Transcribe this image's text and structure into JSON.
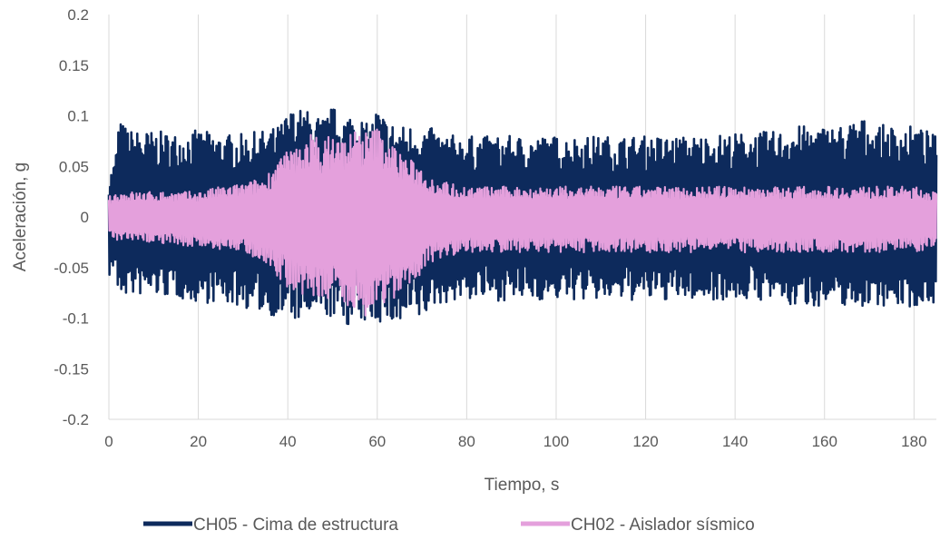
{
  "chart_data": {
    "type": "line",
    "title": "",
    "xlabel": "Tiempo, s",
    "ylabel": "Aceleración, g",
    "xlim": [
      0,
      185
    ],
    "ylim": [
      -0.2,
      0.2
    ],
    "x_ticks": [
      "0",
      "20",
      "40",
      "60",
      "80",
      "100",
      "120",
      "140",
      "160",
      "180"
    ],
    "y_ticks": [
      "0.2",
      "0.15",
      "0.1",
      "0.05",
      "0",
      "-0.05",
      "-0.1",
      "-0.15",
      "-0.2"
    ],
    "grid": "vertical",
    "legend_position": "bottom",
    "series": [
      {
        "name": "CH05 - Cima de estructura",
        "color": "#0d2a5c",
        "envelope": {
          "t": [
            0,
            1.5,
            2,
            5,
            10,
            15,
            20,
            25,
            30,
            35,
            38,
            40,
            42,
            45,
            48,
            50,
            52,
            55,
            58,
            60,
            62,
            65,
            68,
            70,
            72,
            75,
            80,
            90,
            100,
            110,
            120,
            130,
            140,
            150,
            152,
            155,
            160,
            165,
            168,
            170,
            175,
            180,
            183,
            185
          ],
          "max": [
            0.04,
            0.06,
            0.097,
            0.086,
            0.085,
            0.083,
            0.086,
            0.082,
            0.082,
            0.086,
            0.09,
            0.105,
            0.108,
            0.105,
            0.098,
            0.11,
            0.1,
            0.108,
            0.09,
            0.11,
            0.098,
            0.09,
            0.092,
            0.09,
            0.088,
            0.082,
            0.08,
            0.08,
            0.08,
            0.08,
            0.08,
            0.08,
            0.083,
            0.085,
            0.092,
            0.09,
            0.09,
            0.092,
            0.1,
            0.092,
            0.09,
            0.09,
            0.085,
            0.08
          ],
          "min": [
            -0.06,
            -0.05,
            -0.078,
            -0.078,
            -0.078,
            -0.08,
            -0.085,
            -0.085,
            -0.09,
            -0.095,
            -0.1,
            -0.1,
            -0.104,
            -0.1,
            -0.1,
            -0.1,
            -0.105,
            -0.11,
            -0.104,
            -0.105,
            -0.104,
            -0.112,
            -0.1,
            -0.105,
            -0.09,
            -0.085,
            -0.082,
            -0.083,
            -0.082,
            -0.083,
            -0.083,
            -0.082,
            -0.082,
            -0.083,
            -0.09,
            -0.088,
            -0.088,
            -0.088,
            -0.09,
            -0.087,
            -0.088,
            -0.09,
            -0.085,
            -0.085
          ]
        }
      },
      {
        "name": "CH02 - Aislador sísmico",
        "color": "#e4a0dc",
        "envelope": {
          "t": [
            0,
            2,
            10,
            20,
            25,
            30,
            35,
            38,
            40,
            42,
            45,
            48,
            50,
            52,
            55,
            58,
            60,
            62,
            65,
            68,
            70,
            72,
            75,
            80,
            90,
            100,
            110,
            120,
            130,
            140,
            150,
            155,
            160,
            165,
            170,
            175,
            180,
            185
          ],
          "max": [
            0.02,
            0.025,
            0.025,
            0.025,
            0.03,
            0.033,
            0.04,
            0.06,
            0.065,
            0.07,
            0.085,
            0.075,
            0.085,
            0.078,
            0.088,
            0.085,
            0.09,
            0.08,
            0.065,
            0.055,
            0.05,
            0.04,
            0.035,
            0.03,
            0.03,
            0.03,
            0.03,
            0.03,
            0.03,
            0.03,
            0.03,
            0.03,
            0.03,
            0.03,
            0.03,
            0.03,
            0.03,
            0.025
          ],
          "min": [
            -0.02,
            -0.025,
            -0.025,
            -0.03,
            -0.033,
            -0.035,
            -0.045,
            -0.06,
            -0.07,
            -0.075,
            -0.08,
            -0.085,
            -0.085,
            -0.09,
            -0.09,
            -0.1,
            -0.095,
            -0.085,
            -0.08,
            -0.065,
            -0.055,
            -0.045,
            -0.04,
            -0.035,
            -0.035,
            -0.035,
            -0.035,
            -0.035,
            -0.035,
            -0.035,
            -0.035,
            -0.035,
            -0.035,
            -0.035,
            -0.035,
            -0.035,
            -0.035,
            -0.03
          ]
        }
      }
    ]
  }
}
